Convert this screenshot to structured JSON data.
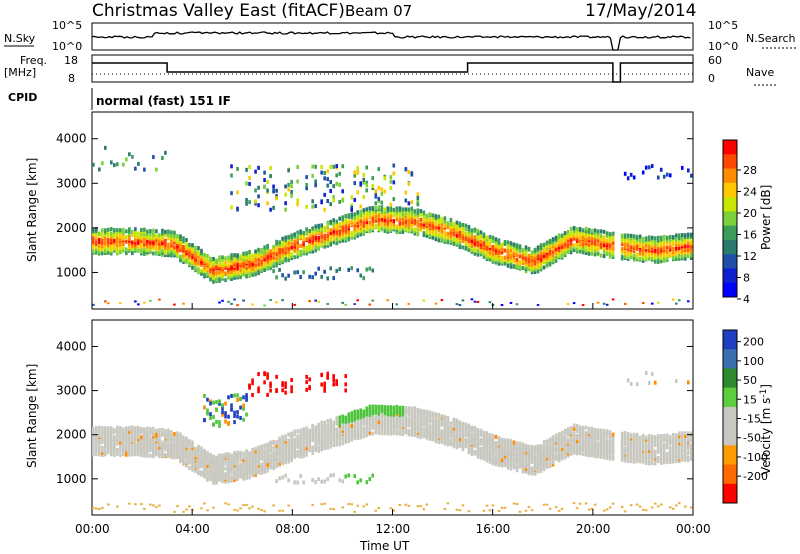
{
  "header": {
    "title": "Christmas Valley East (fitACF)",
    "beam": "Beam 07",
    "date": "17/May/2014"
  },
  "top_panels": {
    "nsky_label": "N.Sky",
    "nsky_ticks": [
      "10^5",
      "10^0"
    ],
    "nsearch_label": "N.Search",
    "nsearch_ticks": [
      "10^5",
      "10^0"
    ],
    "freq_label": "Freq.",
    "freq_unit": "[MHz]",
    "freq_ticks": [
      "18",
      "8"
    ],
    "nave_label": "Nave",
    "nave_ticks": [
      "60",
      "0"
    ],
    "cpid_label": "CPID",
    "cpid_value": "normal (fast) 151 IF"
  },
  "chart_data": [
    {
      "type": "heatmap",
      "panel": "power",
      "ylabel": "Slant Range [km]",
      "xlabel": "",
      "x_range_hours": [
        0,
        24
      ],
      "ylim_km": [
        180,
        4600
      ],
      "yticks": [
        "4000",
        "3000",
        "2000",
        "1000"
      ],
      "yticks_values": [
        4000,
        3000,
        2000,
        1000
      ],
      "colorbar": {
        "label": "Power [dB]",
        "ticks": [
          "28",
          "24",
          "20",
          "16",
          "12",
          "8",
          "4"
        ],
        "colors": [
          "#ff0000",
          "#ff4800",
          "#ff8c00",
          "#ffc800",
          "#c8e600",
          "#7bd13c",
          "#3c9c5a",
          "#2a7a6e",
          "#1f4fa8",
          "#1020d0",
          "#0000ff"
        ]
      },
      "features": [
        {
          "name": "main scatter band",
          "start_h": 0,
          "end_h": 24,
          "center_km": [
            1700,
            1700,
            1650,
            1050,
            1200,
            1600,
            1900,
            2200,
            2150,
            1900,
            1500,
            1250,
            1750,
            1600,
            1500,
            1600
          ],
          "note": "strong red core"
        },
        {
          "name": "upper echoes",
          "start_h": 6,
          "end_h": 12,
          "center_km": 3000
        },
        {
          "name": "lower echoes",
          "start_h": 7,
          "end_h": 11,
          "center_km": 900
        }
      ]
    },
    {
      "type": "heatmap",
      "panel": "velocity",
      "ylabel": "Slant Range [km]",
      "xlabel": "Time UT",
      "x_range_hours": [
        0,
        24
      ],
      "xticks": [
        "00:00",
        "04:00",
        "08:00",
        "12:00",
        "16:00",
        "20:00",
        "00:00"
      ],
      "ylim_km": [
        180,
        4600
      ],
      "yticks": [
        "4000",
        "3000",
        "2000",
        "1000"
      ],
      "yticks_values": [
        4000,
        3000,
        2000,
        1000
      ],
      "colorbar": {
        "label": "Velocity [m s^-1]",
        "ticks": [
          "200",
          "100",
          "50",
          "15",
          "-15",
          "-50",
          "-100",
          "-200"
        ],
        "colors": [
          "#1f3fc0",
          "#3a6fb0",
          "#2f8a2f",
          "#5ccd3c",
          "#c8c8c0",
          "#c8c8c0",
          "#ff9a00",
          "#ff6a00",
          "#ff0000"
        ]
      }
    }
  ],
  "palette": {
    "gray": "#c8c8c0",
    "red": "#ff0000",
    "orange": "#ff8c00",
    "green": "#4cc43c",
    "blue": "#1f3fc0"
  }
}
